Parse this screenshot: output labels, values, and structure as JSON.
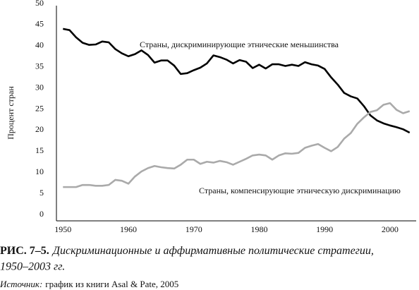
{
  "chart_data": {
    "type": "line",
    "ylabel": "Процент стран",
    "x": [
      1950,
      1951,
      1952,
      1953,
      1954,
      1955,
      1956,
      1957,
      1958,
      1959,
      1960,
      1961,
      1962,
      1963,
      1964,
      1965,
      1966,
      1967,
      1968,
      1969,
      1970,
      1971,
      1972,
      1973,
      1974,
      1975,
      1976,
      1977,
      1978,
      1979,
      1980,
      1981,
      1982,
      1983,
      1984,
      1985,
      1986,
      1987,
      1988,
      1989,
      1990,
      1991,
      1992,
      1993,
      1994,
      1995,
      1996,
      1997,
      1998,
      1999,
      2000,
      2001,
      2002,
      2003
    ],
    "series": [
      {
        "name": "Страны, дискриминирующие этнические меньшинства",
        "color": "#000000",
        "values": [
          44,
          43.7,
          42,
          40.7,
          40.2,
          40.3,
          41,
          40.8,
          39.2,
          38.2,
          37.5,
          38,
          38.9,
          37.8,
          36,
          36.5,
          36.5,
          35.3,
          33.3,
          33.5,
          34.2,
          34.8,
          35.8,
          37.7,
          37.3,
          36.7,
          35.8,
          36.6,
          36.2,
          34.7,
          35.5,
          34.6,
          35.6,
          35.6,
          35.2,
          35.5,
          35.2,
          36.1,
          35.6,
          35.3,
          34.5,
          32.5,
          30.8,
          28.8,
          28,
          27.5,
          25.7,
          23.5,
          22.3,
          21.6,
          21.1,
          20.7,
          20.2,
          19.4
        ]
      },
      {
        "name": "Страны, компенсирующие этническую дискриминацию",
        "color": "#aaaaaa",
        "values": [
          6.5,
          6.5,
          6.5,
          7,
          7,
          6.8,
          6.8,
          7,
          8.2,
          8,
          7.3,
          9,
          10.2,
          11,
          11.5,
          11.2,
          11,
          10.9,
          11.8,
          13,
          13,
          12,
          12.5,
          12.3,
          12.7,
          12.4,
          11.8,
          12.5,
          13.2,
          14,
          14.2,
          14,
          13,
          14,
          14.5,
          14.4,
          14.6,
          15.8,
          16.3,
          16.7,
          15.8,
          15,
          16,
          18,
          19.3,
          21.5,
          23,
          24.3,
          24.7,
          26,
          26.4,
          24.8,
          24,
          24.5
        ]
      }
    ],
    "xlim": [
      1949,
      2004
    ],
    "ylim": [
      0,
      50
    ],
    "xticks": [
      1950,
      1960,
      1970,
      1980,
      1990,
      2000
    ],
    "yticks": [
      0,
      5,
      10,
      15,
      20,
      25,
      30,
      35,
      40,
      45,
      50
    ]
  },
  "caption": {
    "label": "РИС. 7–5.",
    "title": "Дискриминационные и аффирмативные политические стратегии,",
    "title2": "1950–2003 гг."
  },
  "source": {
    "label": "Источник:",
    "text": "график из книги Asal & Pate, 2005"
  }
}
